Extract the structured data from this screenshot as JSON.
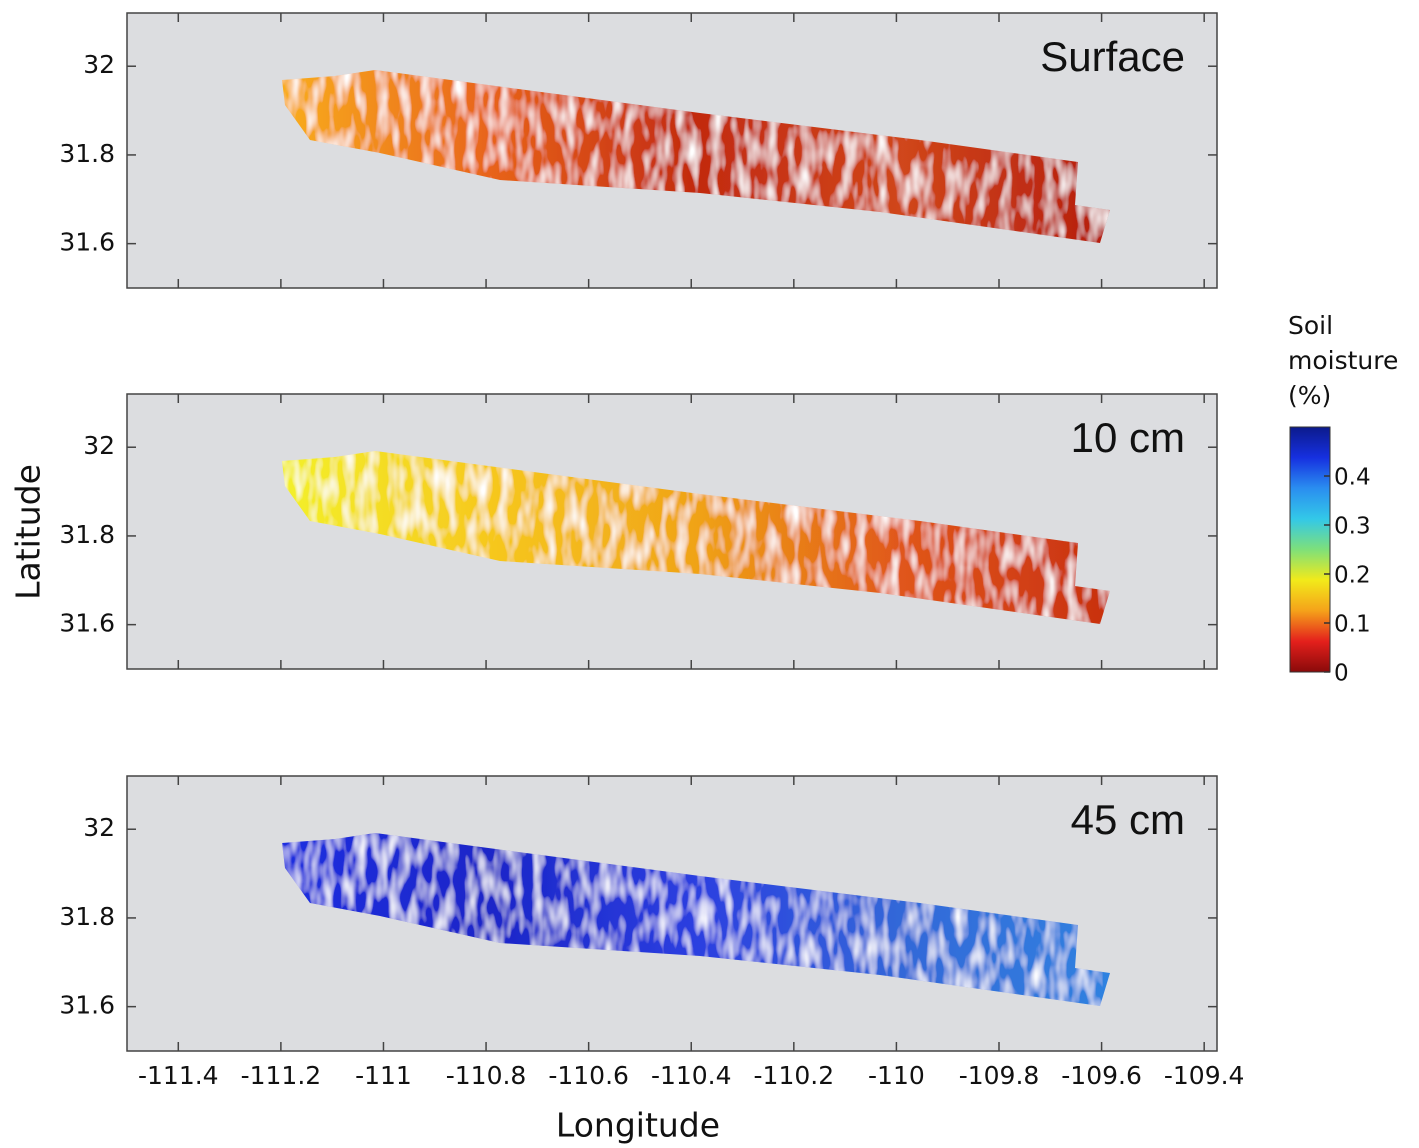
{
  "chart_data": [
    {
      "type": "heatmap",
      "title": "Surface",
      "colors": [
        "#f9ad1c",
        "#e8641a",
        "#c22a10",
        "#d0461a",
        "#b51d0d"
      ],
      "xlim": [
        -111.5,
        -109.375
      ],
      "ylim": [
        31.5,
        32.12
      ],
      "xticks": [
        -111.4,
        -111.2,
        -111,
        -110.8,
        -110.6,
        -110.4,
        -110.2,
        -110,
        -109.8,
        -109.6,
        -109.4
      ],
      "yticks": [
        31.6,
        31.8,
        32
      ]
    },
    {
      "type": "heatmap",
      "title": "10 cm",
      "colors": [
        "#f3f02a",
        "#f6c81e",
        "#f0a318",
        "#e0561a",
        "#c8300f"
      ],
      "xlim": [
        -111.5,
        -109.375
      ],
      "ylim": [
        31.5,
        32.12
      ],
      "xticks": [
        -111.4,
        -111.2,
        -111,
        -110.8,
        -110.6,
        -110.4,
        -110.2,
        -110,
        -109.8,
        -109.6,
        -109.4
      ],
      "yticks": [
        31.6,
        31.8,
        32
      ]
    },
    {
      "type": "heatmap",
      "title": "45 cm",
      "colors": [
        "#1f2fe0",
        "#1a25c8",
        "#2c3fe0",
        "#3268d8",
        "#2f82e0"
      ],
      "xlim": [
        -111.5,
        -109.375
      ],
      "ylim": [
        31.5,
        32.12
      ],
      "xticks": [
        -111.4,
        -111.2,
        -111,
        -110.8,
        -110.6,
        -110.4,
        -110.2,
        -110,
        -109.8,
        -109.6,
        -109.4
      ],
      "yticks": [
        31.6,
        31.8,
        32
      ]
    }
  ],
  "x_label": "Longitude",
  "y_label": "Latitude",
  "colorbar": {
    "title": "Soil moisture (%)",
    "lim": [
      0,
      0.5
    ],
    "ticks": [
      0,
      0.1,
      0.2,
      0.3,
      0.4
    ],
    "colors": [
      "#8a0a0a",
      "#e4201c",
      "#f5a21a",
      "#f2ea1a",
      "#7ee07a",
      "#33c8e8",
      "#2a8ef0",
      "#1630e0",
      "#0c1a8c"
    ]
  }
}
